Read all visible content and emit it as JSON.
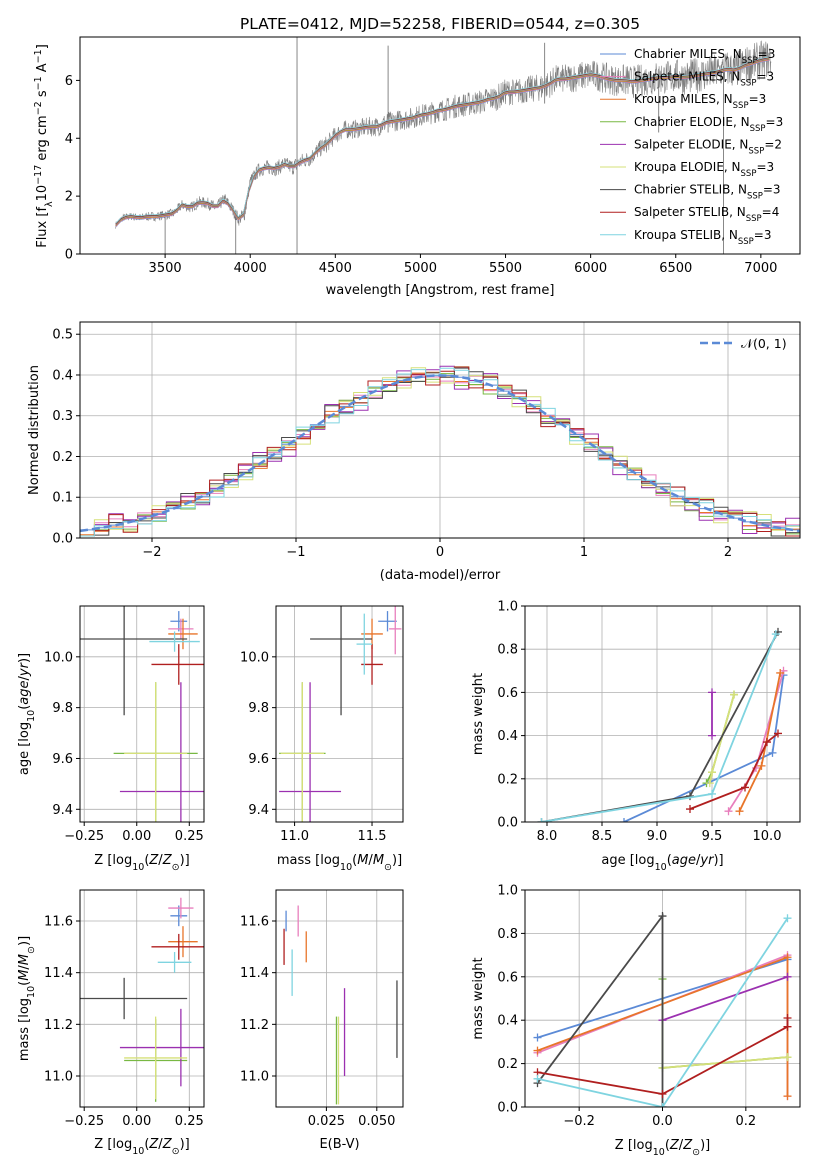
{
  "figure": {
    "title": "PLATE=0412, MJD=52258, FIBERID=0544, z=0.305"
  },
  "colors": {
    "Chabrier MILES": "#5b8ad6",
    "Salpeter MILES": "#e87fbd",
    "Kroupa MILES": "#e8752a",
    "Chabrier ELODIE": "#78b843",
    "Salpeter ELODIE": "#9b30b0",
    "Kroupa ELODIE": "#d6e07a",
    "Chabrier STELIB": "#4a4a4a",
    "Salpeter STELIB": "#b01f1f",
    "Kroupa STELIB": "#7fd4e0",
    "data": "#808080",
    "normal": "#5b8ad6"
  },
  "chart_data": [
    {
      "id": "spectrum",
      "type": "line",
      "title": "PLATE=0412, MJD=52258, FIBERID=0544, z=0.305",
      "xlabel": "wavelength [Angstrom, rest frame]",
      "ylabel": "Flux [f_λ 10^-17 erg cm^-2 s^-1 A^-1]",
      "xlim": [
        3000,
        7230
      ],
      "ylim": [
        0,
        7.5
      ],
      "xticks": [
        3500,
        4000,
        4500,
        5000,
        5500,
        6000,
        6500,
        7000
      ],
      "yticks": [
        0,
        2,
        4,
        6
      ],
      "grid": false,
      "legend_position": "top-right",
      "legend": [
        {
          "model": "Chabrier MILES",
          "label": "Chabrier MILES, N",
          "sub": "SSP",
          "tail": "=3"
        },
        {
          "model": "Salpeter MILES",
          "label": "Salpeter MILES, N",
          "sub": "SSP",
          "tail": "=3"
        },
        {
          "model": "Kroupa MILES",
          "label": "Kroupa MILES, N",
          "sub": "SSP",
          "tail": "=3"
        },
        {
          "model": "Chabrier ELODIE",
          "label": "Chabrier ELODIE, N",
          "sub": "SSP",
          "tail": "=3"
        },
        {
          "model": "Salpeter ELODIE",
          "label": "Salpeter ELODIE, N",
          "sub": "SSP",
          "tail": "=2"
        },
        {
          "model": "Kroupa ELODIE",
          "label": "Kroupa ELODIE, N",
          "sub": "SSP",
          "tail": "=3"
        },
        {
          "model": "Chabrier STELIB",
          "label": "Chabrier STELIB, N",
          "sub": "SSP",
          "tail": "=3"
        },
        {
          "model": "Salpeter STELIB",
          "label": "Salpeter STELIB, N",
          "sub": "SSP",
          "tail": "=4"
        },
        {
          "model": "Kroupa STELIB",
          "label": "Kroupa STELIB, N",
          "sub": "SSP",
          "tail": "=3"
        }
      ],
      "data_spectrum": {
        "x": [
          3210,
          3250,
          3300,
          3350,
          3400,
          3450,
          3500,
          3550,
          3600,
          3650,
          3700,
          3750,
          3800,
          3850,
          3900,
          3933,
          3968,
          4000,
          4050,
          4100,
          4150,
          4200,
          4250,
          4300,
          4350,
          4400,
          4450,
          4500,
          4550,
          4600,
          4650,
          4700,
          4750,
          4800,
          4850,
          4900,
          4950,
          5000,
          5050,
          5100,
          5150,
          5200,
          5250,
          5300,
          5350,
          5400,
          5450,
          5500,
          5550,
          5600,
          5650,
          5700,
          5750,
          5800,
          5850,
          5900,
          5950,
          6000,
          6050,
          6100,
          6150,
          6200,
          6250,
          6300,
          6350,
          6400,
          6450,
          6500,
          6550,
          6600,
          6650,
          6700,
          6750,
          6800,
          6850,
          6900,
          6950,
          7000,
          7050
        ],
        "y": [
          1.0,
          1.25,
          1.3,
          1.25,
          1.3,
          1.3,
          1.35,
          1.4,
          1.7,
          1.6,
          1.8,
          1.75,
          1.6,
          1.9,
          1.5,
          1.2,
          1.4,
          2.5,
          2.9,
          3.0,
          2.95,
          3.1,
          3.0,
          3.2,
          3.3,
          3.6,
          3.8,
          4.1,
          4.3,
          4.3,
          4.35,
          4.4,
          4.4,
          4.55,
          4.6,
          4.65,
          4.7,
          4.8,
          4.85,
          4.95,
          5.0,
          5.1,
          5.15,
          5.2,
          5.25,
          5.35,
          5.4,
          5.6,
          5.6,
          5.65,
          5.7,
          5.75,
          5.85,
          6.05,
          6.05,
          6.1,
          6.15,
          6.2,
          6.15,
          6.05,
          6.0,
          6.0,
          5.95,
          6.0,
          6.05,
          6.1,
          6.1,
          6.15,
          6.1,
          6.15,
          6.2,
          6.25,
          6.3,
          6.4,
          6.35,
          6.5,
          6.6,
          6.7,
          6.75
        ]
      },
      "model_offset": 0.12
    },
    {
      "id": "residuals",
      "type": "line",
      "xlabel": "(data-model)/error",
      "ylabel": "Normed distribution",
      "xlim": [
        -2.5,
        2.5
      ],
      "ylim": [
        0,
        0.53
      ],
      "xticks": [
        -2,
        -1,
        0,
        1,
        2
      ],
      "yticks": [
        0.0,
        0.1,
        0.2,
        0.3,
        0.4,
        0.5
      ],
      "grid": true,
      "legend_position": "top-right",
      "legend": [
        {
          "label": "𝒩(0, 1)",
          "style": "dashed"
        }
      ],
      "bins_x0": -2.5,
      "bin_width": 0.1,
      "series": [
        {
          "model": "Chabrier MILES",
          "jitter": 0.0
        },
        {
          "model": "Salpeter MILES",
          "jitter": 0.016
        },
        {
          "model": "Kroupa MILES",
          "jitter": 0.012
        },
        {
          "model": "Chabrier ELODIE",
          "jitter": 0.022
        },
        {
          "model": "Salpeter ELODIE",
          "jitter": 0.03
        },
        {
          "model": "Kroupa ELODIE",
          "jitter": 0.026
        },
        {
          "model": "Chabrier STELIB",
          "jitter": 0.024
        },
        {
          "model": "Salpeter STELIB",
          "jitter": 0.028
        },
        {
          "model": "Kroupa STELIB",
          "jitter": 0.02
        }
      ]
    },
    {
      "id": "age-vs-Z",
      "type": "scatter",
      "xlabel": "Z [log10(Z/Z⊙)]",
      "ylabel": "age  [log10(age/yr)]",
      "xlim": [
        -0.27,
        0.32
      ],
      "ylim": [
        9.35,
        10.2
      ],
      "xticks": [
        -0.25,
        0.0,
        0.25
      ],
      "yticks": [
        9.4,
        9.6,
        9.8,
        10.0
      ],
      "grid": true,
      "points": [
        {
          "model": "Chabrier MILES",
          "x": 0.2,
          "y": 10.14,
          "xerr": 0.04,
          "yerr": 0.04
        },
        {
          "model": "Salpeter MILES",
          "x": 0.21,
          "y": 10.11,
          "xerr": 0.06,
          "yerr": 0.04
        },
        {
          "model": "Kroupa MILES",
          "x": 0.22,
          "y": 10.09,
          "xerr": 0.07,
          "yerr": 0.06
        },
        {
          "model": "Chabrier ELODIE",
          "x": 0.09,
          "y": 9.62,
          "xerr": 0.2,
          "yerr": 0.28
        },
        {
          "model": "Salpeter ELODIE",
          "x": 0.21,
          "y": 9.47,
          "xerr": 0.29,
          "yerr": 0.43
        },
        {
          "model": "Kroupa ELODIE",
          "x": 0.09,
          "y": 9.62,
          "xerr": 0.15,
          "yerr": 0.28
        },
        {
          "model": "Chabrier STELIB",
          "x": -0.06,
          "y": 10.07,
          "xerr": 0.3,
          "yerr": 0.3
        },
        {
          "model": "Salpeter STELIB",
          "x": 0.2,
          "y": 9.97,
          "xerr": 0.13,
          "yerr": 0.08
        },
        {
          "model": "Kroupa STELIB",
          "x": 0.18,
          "y": 10.06,
          "xerr": 0.12,
          "yerr": 0.04
        }
      ]
    },
    {
      "id": "age-vs-mass",
      "type": "scatter",
      "xlabel": "mass [log10(M/M⊙)]",
      "ylabel": "",
      "xlim": [
        10.88,
        11.7
      ],
      "ylim": [
        9.35,
        10.2
      ],
      "xticks": [
        11.0,
        11.5
      ],
      "yticks": [
        9.4,
        9.6,
        9.8,
        10.0
      ],
      "grid": true,
      "points": [
        {
          "model": "Chabrier MILES",
          "x": 11.6,
          "y": 10.14,
          "xerr": 0.06,
          "yerr": 0.04
        },
        {
          "model": "Salpeter MILES",
          "x": 11.65,
          "y": 10.11,
          "xerr": 0.04,
          "yerr": 0.1
        },
        {
          "model": "Kroupa MILES",
          "x": 11.5,
          "y": 10.09,
          "xerr": 0.07,
          "yerr": 0.06
        },
        {
          "model": "Chabrier ELODIE",
          "x": 11.05,
          "y": 9.62,
          "xerr": 0.15,
          "yerr": 0.28
        },
        {
          "model": "Salpeter ELODIE",
          "x": 11.1,
          "y": 9.47,
          "xerr": 0.2,
          "yerr": 0.43
        },
        {
          "model": "Kroupa ELODIE",
          "x": 11.05,
          "y": 9.62,
          "xerr": 0.14,
          "yerr": 0.28
        },
        {
          "model": "Chabrier STELIB",
          "x": 11.3,
          "y": 10.07,
          "xerr": 0.2,
          "yerr": 0.3
        },
        {
          "model": "Salpeter STELIB",
          "x": 11.5,
          "y": 9.97,
          "xerr": 0.07,
          "yerr": 0.08
        },
        {
          "model": "Kroupa STELIB",
          "x": 11.45,
          "y": 10.05,
          "xerr": 0.05,
          "yerr": 0.12
        }
      ]
    },
    {
      "id": "weight-vs-age",
      "type": "line",
      "xlabel": "age  [log10(age/yr)]",
      "ylabel": "mass weight",
      "xlim": [
        7.8,
        10.3
      ],
      "ylim": [
        0,
        1.0
      ],
      "xticks": [
        8.0,
        8.5,
        9.0,
        9.5,
        10.0
      ],
      "yticks": [
        0.0,
        0.2,
        0.4,
        0.6,
        0.8,
        1.0
      ],
      "grid": true,
      "series": [
        {
          "model": "Chabrier MILES",
          "x": [
            8.7,
            10.05,
            10.15
          ],
          "y": [
            0.0,
            0.32,
            0.68
          ]
        },
        {
          "model": "Salpeter MILES",
          "x": [
            9.65,
            9.9,
            10.15
          ],
          "y": [
            0.05,
            0.25,
            0.7
          ]
        },
        {
          "model": "Kroupa MILES",
          "x": [
            9.75,
            9.95,
            10.12
          ],
          "y": [
            0.05,
            0.26,
            0.69
          ]
        },
        {
          "model": "Chabrier ELODIE",
          "x": [
            9.45,
            9.5,
            9.7
          ],
          "y": [
            0.18,
            0.23,
            0.59
          ]
        },
        {
          "model": "Salpeter ELODIE",
          "x": [
            9.5,
            9.5
          ],
          "y": [
            0.4,
            0.6
          ]
        },
        {
          "model": "Kroupa ELODIE",
          "x": [
            9.48,
            9.5,
            9.7
          ],
          "y": [
            0.18,
            0.23,
            0.59
          ]
        },
        {
          "model": "Chabrier STELIB",
          "x": [
            7.95,
            9.3,
            10.1
          ],
          "y": [
            0.0,
            0.12,
            0.88
          ]
        },
        {
          "model": "Salpeter STELIB",
          "x": [
            9.3,
            9.8,
            10.0,
            10.1
          ],
          "y": [
            0.06,
            0.16,
            0.37,
            0.41
          ]
        },
        {
          "model": "Kroupa STELIB",
          "x": [
            7.95,
            9.5,
            10.08
          ],
          "y": [
            0.0,
            0.13,
            0.87
          ]
        }
      ]
    },
    {
      "id": "mass-vs-Z",
      "type": "scatter",
      "xlabel": "Z [log10(Z/Z⊙)]",
      "ylabel": "mass [log10(M/M⊙)]",
      "xlim": [
        -0.27,
        0.32
      ],
      "ylim": [
        10.88,
        11.72
      ],
      "xticks": [
        -0.25,
        0.0,
        0.25
      ],
      "yticks": [
        11.0,
        11.2,
        11.4,
        11.6
      ],
      "grid": true,
      "points": [
        {
          "model": "Chabrier MILES",
          "x": 0.2,
          "y": 11.62,
          "xerr": 0.04,
          "yerr": 0.04
        },
        {
          "model": "Salpeter MILES",
          "x": 0.21,
          "y": 11.65,
          "xerr": 0.06,
          "yerr": 0.04
        },
        {
          "model": "Kroupa MILES",
          "x": 0.22,
          "y": 11.52,
          "xerr": 0.07,
          "yerr": 0.06
        },
        {
          "model": "Chabrier ELODIE",
          "x": 0.09,
          "y": 11.06,
          "xerr": 0.15,
          "yerr": 0.16
        },
        {
          "model": "Salpeter ELODIE",
          "x": 0.21,
          "y": 11.11,
          "xerr": 0.29,
          "yerr": 0.15
        },
        {
          "model": "Kroupa ELODIE",
          "x": 0.09,
          "y": 11.07,
          "xerr": 0.15,
          "yerr": 0.16
        },
        {
          "model": "Chabrier STELIB",
          "x": -0.06,
          "y": 11.3,
          "xerr": 0.3,
          "yerr": 0.08
        },
        {
          "model": "Salpeter STELIB",
          "x": 0.2,
          "y": 11.5,
          "xerr": 0.13,
          "yerr": 0.05
        },
        {
          "model": "Kroupa STELIB",
          "x": 0.18,
          "y": 11.44,
          "xerr": 0.08,
          "yerr": 0.04
        }
      ]
    },
    {
      "id": "mass-vs-ebv",
      "type": "scatter",
      "xlabel": "E(B-V)",
      "ylabel": "",
      "xlim": [
        0.0,
        0.063
      ],
      "ylim": [
        10.88,
        11.72
      ],
      "xticks": [
        0.025,
        0.05
      ],
      "yticks": [
        11.0,
        11.2,
        11.4,
        11.6
      ],
      "grid": true,
      "points": [
        {
          "model": "Chabrier MILES",
          "x": 0.005,
          "y": 11.6,
          "xerr": 0.0,
          "yerr": 0.04
        },
        {
          "model": "Salpeter MILES",
          "x": 0.011,
          "y": 11.6,
          "xerr": 0.0,
          "yerr": 0.06
        },
        {
          "model": "Kroupa MILES",
          "x": 0.015,
          "y": 11.5,
          "xerr": 0.0,
          "yerr": 0.06
        },
        {
          "model": "Chabrier ELODIE",
          "x": 0.03,
          "y": 11.06,
          "xerr": 0.0,
          "yerr": 0.17
        },
        {
          "model": "Salpeter ELODIE",
          "x": 0.034,
          "y": 11.17,
          "xerr": 0.0,
          "yerr": 0.17
        },
        {
          "model": "Kroupa ELODIE",
          "x": 0.031,
          "y": 11.06,
          "xerr": 0.0,
          "yerr": 0.17
        },
        {
          "model": "Chabrier STELIB",
          "x": 0.06,
          "y": 11.22,
          "xerr": 0.0,
          "yerr": 0.15
        },
        {
          "model": "Salpeter STELIB",
          "x": 0.004,
          "y": 11.5,
          "xerr": 0.0,
          "yerr": 0.07
        },
        {
          "model": "Kroupa STELIB",
          "x": 0.008,
          "y": 11.4,
          "xerr": 0.0,
          "yerr": 0.09
        }
      ]
    },
    {
      "id": "weight-vs-Z",
      "type": "line",
      "xlabel": "Z [log10(Z/Z⊙)]",
      "ylabel": "mass weight",
      "xlim": [
        -0.33,
        0.33
      ],
      "ylim": [
        0,
        1.0
      ],
      "xticks": [
        -0.2,
        0.0,
        0.2
      ],
      "yticks": [
        0.0,
        0.2,
        0.4,
        0.6,
        0.8,
        1.0
      ],
      "grid": true,
      "series": [
        {
          "model": "Chabrier MILES",
          "x": [
            -0.3,
            0.3
          ],
          "y": [
            0.32,
            0.68
          ]
        },
        {
          "model": "Salpeter MILES",
          "x": [
            -0.3,
            0.3,
            0.3
          ],
          "y": [
            0.25,
            0.7,
            0.05
          ]
        },
        {
          "model": "Kroupa MILES",
          "x": [
            -0.3,
            0.3,
            0.3
          ],
          "y": [
            0.26,
            0.69,
            0.05
          ]
        },
        {
          "model": "Chabrier ELODIE",
          "x": [
            0.0,
            0.0,
            0.3
          ],
          "y": [
            0.59,
            0.18,
            0.23
          ]
        },
        {
          "model": "Salpeter ELODIE",
          "x": [
            0.0,
            0.3
          ],
          "y": [
            0.4,
            0.6
          ]
        },
        {
          "model": "Kroupa ELODIE",
          "x": [
            0.0,
            0.3
          ],
          "y": [
            0.18,
            0.23
          ]
        },
        {
          "model": "Chabrier STELIB",
          "x": [
            -0.3,
            0.0,
            0.0
          ],
          "y": [
            0.11,
            0.88,
            0.0
          ]
        },
        {
          "model": "Salpeter STELIB",
          "x": [
            -0.3,
            0.0,
            0.3,
            0.3
          ],
          "y": [
            0.16,
            0.06,
            0.37,
            0.41
          ]
        },
        {
          "model": "Kroupa STELIB",
          "x": [
            -0.3,
            0.0,
            0.3
          ],
          "y": [
            0.13,
            0.0,
            0.87
          ]
        }
      ]
    }
  ]
}
